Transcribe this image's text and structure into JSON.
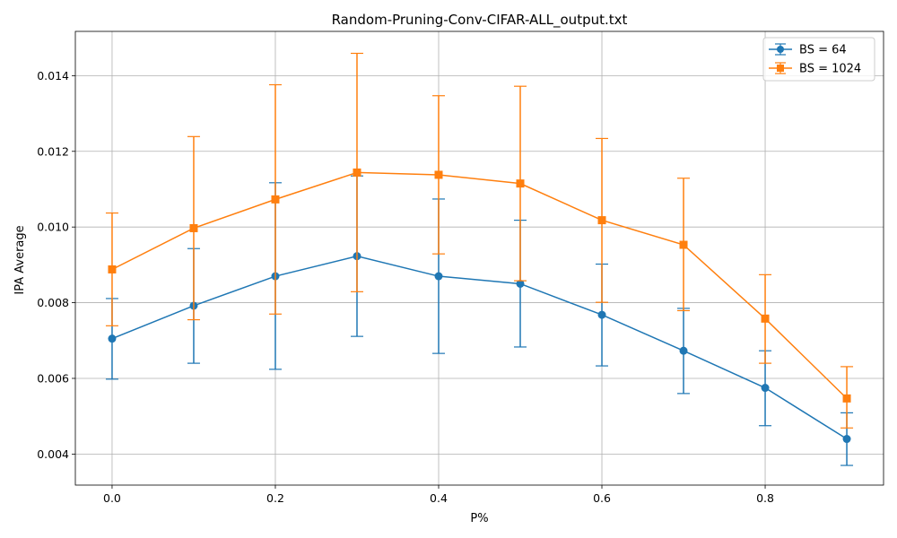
{
  "chart_data": {
    "type": "line",
    "title": "Random-Pruning-Conv-CIFAR-ALL_output.txt",
    "xlabel": "P%",
    "ylabel": "IPA Average",
    "x": [
      0.0,
      0.1,
      0.2,
      0.3,
      0.4,
      0.5,
      0.6,
      0.7,
      0.8,
      0.9
    ],
    "xlim": [
      -0.045,
      0.945
    ],
    "ylim": [
      0.00318,
      0.01517
    ],
    "xticks": [
      0.0,
      0.2,
      0.4,
      0.6,
      0.8
    ],
    "xtick_labels": [
      "0.0",
      "0.2",
      "0.4",
      "0.6",
      "0.8"
    ],
    "yticks": [
      0.004,
      0.006,
      0.008,
      0.01,
      0.012,
      0.014
    ],
    "ytick_labels": [
      "0.004",
      "0.006",
      "0.008",
      "0.010",
      "0.012",
      "0.014"
    ],
    "grid": true,
    "legend_position": "top-right",
    "error_bars": true,
    "series": [
      {
        "name": "BS = 64",
        "color": "#1f77b4",
        "marker": "circle",
        "values": [
          0.00705,
          0.00792,
          0.0087,
          0.00923,
          0.0087,
          0.0085,
          0.00768,
          0.00673,
          0.00575,
          0.0044
        ],
        "lower": [
          0.00598,
          0.0064,
          0.00624,
          0.00711,
          0.00666,
          0.00683,
          0.00633,
          0.0056,
          0.00475,
          0.0037
        ],
        "upper": [
          0.00811,
          0.00943,
          0.01117,
          0.01135,
          0.01074,
          0.01018,
          0.00902,
          0.00785,
          0.00673,
          0.00509
        ]
      },
      {
        "name": "BS = 1024",
        "color": "#ff7f0e",
        "marker": "square",
        "values": [
          0.00888,
          0.00997,
          0.01073,
          0.01144,
          0.01138,
          0.01115,
          0.01018,
          0.00953,
          0.00758,
          0.00547
        ],
        "lower": [
          0.00739,
          0.00755,
          0.0077,
          0.00829,
          0.00929,
          0.00858,
          0.00801,
          0.00779,
          0.0064,
          0.00469
        ],
        "upper": [
          0.01037,
          0.01239,
          0.01376,
          0.01459,
          0.01347,
          0.01372,
          0.01234,
          0.01129,
          0.00874,
          0.00631
        ]
      }
    ]
  }
}
